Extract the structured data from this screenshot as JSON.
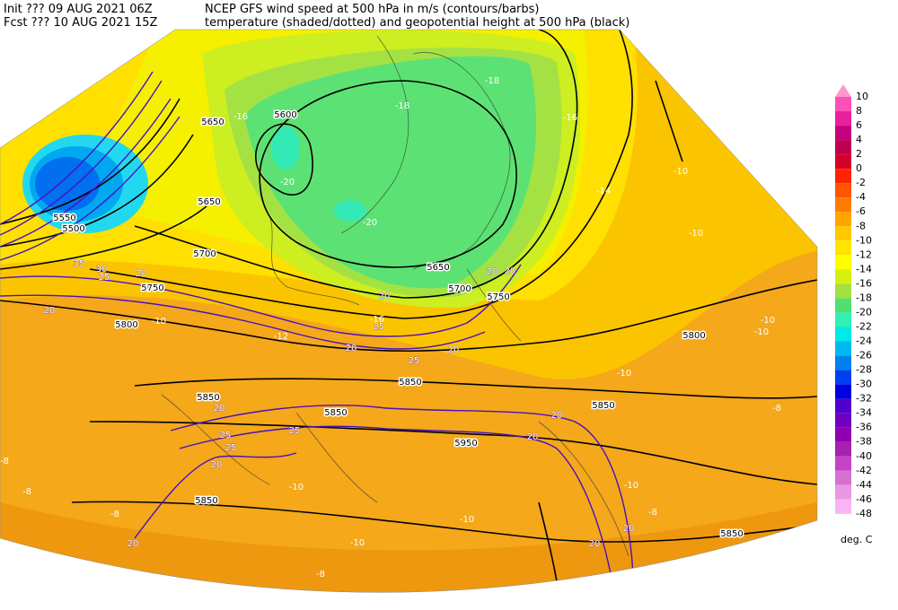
{
  "header": {
    "init": "Init  ??? 09 AUG 2021 06Z",
    "fcst": "Fcst ??? 10 AUG 2021 15Z",
    "line1": "NCEP GFS wind speed at 500 hPa in m/s (contours/barbs)",
    "line2": "temperature (shaded/dotted) and geopotential height at 500 hPa (black)"
  },
  "colorbar": {
    "unit": "deg. C",
    "entries": [
      {
        "label": 10,
        "color": "#ff99cc"
      },
      {
        "label": 8,
        "color": "#ff50b8"
      },
      {
        "label": 6,
        "color": "#e8209c"
      },
      {
        "label": 4,
        "color": "#c8007e"
      },
      {
        "label": 2,
        "color": "#c00050"
      },
      {
        "label": 0,
        "color": "#d4002c"
      },
      {
        "label": -2,
        "color": "#ff2400"
      },
      {
        "label": -4,
        "color": "#ff5400"
      },
      {
        "label": -6,
        "color": "#ff7c00"
      },
      {
        "label": -8,
        "color": "#ffa400"
      },
      {
        "label": -10,
        "color": "#ffc800"
      },
      {
        "label": -12,
        "color": "#ffe400"
      },
      {
        "label": -14,
        "color": "#ffff00"
      },
      {
        "label": -16,
        "color": "#d4f010"
      },
      {
        "label": -18,
        "color": "#a4e040"
      },
      {
        "label": -20,
        "color": "#50e070"
      },
      {
        "label": -22,
        "color": "#30f0b4"
      },
      {
        "label": -24,
        "color": "#00e8e8"
      },
      {
        "label": -26,
        "color": "#00b8f0"
      },
      {
        "label": -28,
        "color": "#0080f0"
      },
      {
        "label": -30,
        "color": "#0040f0"
      },
      {
        "label": -32,
        "color": "#0000e0"
      },
      {
        "label": -34,
        "color": "#5000d0"
      },
      {
        "label": -36,
        "color": "#7000c0"
      },
      {
        "label": -38,
        "color": "#9000b0"
      },
      {
        "label": -40,
        "color": "#a820b0"
      },
      {
        "label": -42,
        "color": "#c444c4"
      },
      {
        "label": -44,
        "color": "#d870d4"
      },
      {
        "label": -46,
        "color": "#e898e4"
      },
      {
        "label": -48,
        "color": "#f8b4f4"
      }
    ]
  },
  "height_labels": [
    5650,
    5600,
    5650,
    5700,
    5750,
    5800,
    5550,
    5500,
    5650,
    5700,
    5750,
    5850,
    5850,
    5850,
    5850,
    5950,
    5850,
    5850,
    5800
  ],
  "temperature_labels": [
    -18,
    -16,
    -18,
    -20,
    -20,
    -16,
    -14,
    -10,
    -10,
    -12,
    -10,
    -16,
    -10,
    -10,
    -10,
    -8,
    -10,
    -8,
    -10,
    -10,
    -8,
    -8,
    -8,
    -10,
    -8
  ],
  "wind_labels": [
    20,
    20,
    25,
    20,
    25,
    20,
    20,
    25,
    25,
    20,
    25,
    20,
    20,
    20,
    20,
    20,
    30,
    25,
    20,
    20,
    35,
    20
  ]
}
